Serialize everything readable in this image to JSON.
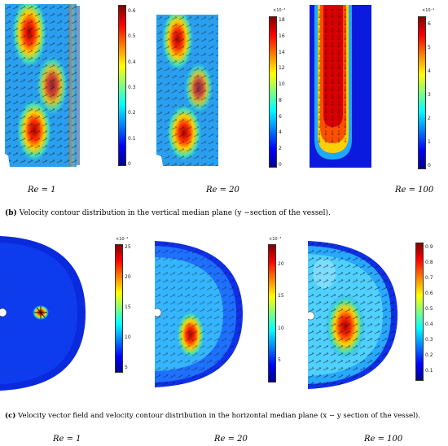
{
  "row1": {
    "panels": [
      {
        "ticks": [
          "0.6",
          "0.5",
          "0.4",
          "0.3",
          "0.2",
          "0.1",
          "0"
        ],
        "exponent": ""
      },
      {
        "ticks": [
          "18",
          "16",
          "14",
          "12",
          "10",
          "8",
          "6",
          "4",
          "2",
          "0"
        ],
        "exponent": "×10⁻³"
      },
      {
        "ticks": [
          "6",
          "5",
          "4",
          "3",
          "2",
          "1",
          "0"
        ],
        "exponent": "×10⁻⁴"
      }
    ],
    "labels": [
      "Re = 1",
      "Re = 20",
      "Re = 100"
    ],
    "caption_id": "(b)",
    "caption_text": "Velocity contour distribution in the vertical median plane (y −section of the vessel)."
  },
  "row2": {
    "panels": [
      {
        "ticks": [
          "25",
          "20",
          "15",
          "10",
          "5"
        ],
        "exponent": "×10⁻⁴"
      },
      {
        "ticks": [
          "20",
          "15",
          "10",
          "5"
        ],
        "exponent": "×10⁻³"
      },
      {
        "ticks": [
          "0.9",
          "0.8",
          "0.7",
          "0.6",
          "0.5",
          "0.4",
          "0.3",
          "0.2",
          "0.1"
        ],
        "exponent": ""
      }
    ],
    "labels": [
      "Re = 1",
      "Re = 20",
      "Re = 100"
    ],
    "caption_id": "(c)",
    "caption_text": "Velocity vector field and velocity contour distribution in the horizontal median plane (x − y  section of the vessel)."
  }
}
